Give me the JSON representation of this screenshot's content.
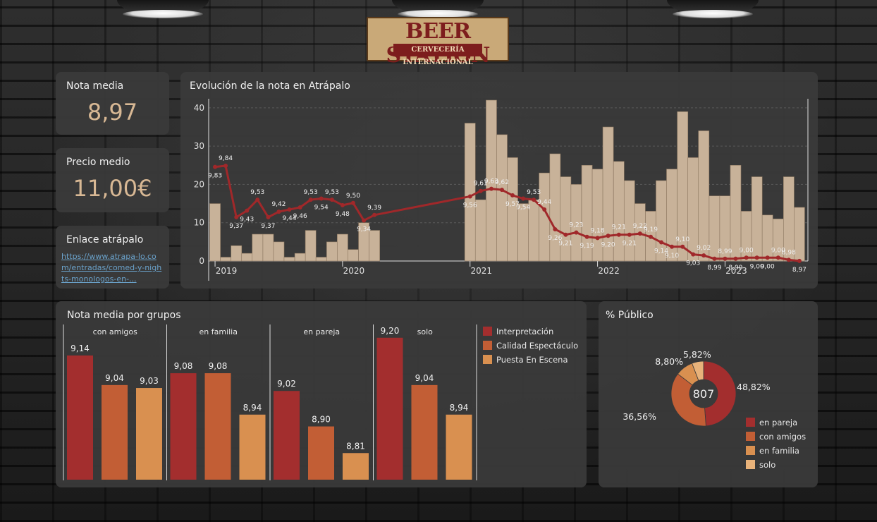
{
  "logo": {
    "main": "BEER STATION",
    "sub": "CERVECERÍA INTERNACIONAL"
  },
  "kpis": {
    "nota_media": {
      "label": "Nota media",
      "value": "8,97"
    },
    "precio_medio": {
      "label": "Precio medio",
      "value": "11,00€"
    },
    "enlace": {
      "label": "Enlace atrápalo",
      "url_text": "https://www.atrapa-lo.com/entradas/comed-y-nights-monologos-en-..."
    }
  },
  "colors": {
    "bar": "#c8b299",
    "line": "#a0282a",
    "interpretacion": "#a32e2e",
    "calidad": "#c25e35",
    "puesta": "#d99050",
    "solo": "#e8b27a"
  },
  "evolucion": {
    "title": "Evolución de la nota en Atrápalo",
    "chart_data": {
      "type": "bar+line",
      "yticks": [
        0,
        10,
        20,
        30,
        40
      ],
      "ylim": [
        0,
        42
      ],
      "xlim": [
        2018.95,
        2023.65
      ],
      "xticks": [
        2019,
        2020,
        2021,
        2022,
        2023
      ],
      "bars": [
        {
          "x": 2019.0,
          "v": 15
        },
        {
          "x": 2019.083,
          "v": 1
        },
        {
          "x": 2019.167,
          "v": 4
        },
        {
          "x": 2019.25,
          "v": 2
        },
        {
          "x": 2019.333,
          "v": 7
        },
        {
          "x": 2019.417,
          "v": 7
        },
        {
          "x": 2019.5,
          "v": 5
        },
        {
          "x": 2019.583,
          "v": 1
        },
        {
          "x": 2019.667,
          "v": 2
        },
        {
          "x": 2019.75,
          "v": 8
        },
        {
          "x": 2019.833,
          "v": 1
        },
        {
          "x": 2019.917,
          "v": 5
        },
        {
          "x": 2020.0,
          "v": 7
        },
        {
          "x": 2020.083,
          "v": 3
        },
        {
          "x": 2020.167,
          "v": 10
        },
        {
          "x": 2020.25,
          "v": 8
        },
        {
          "x": 2021.0,
          "v": 36
        },
        {
          "x": 2021.083,
          "v": 16
        },
        {
          "x": 2021.167,
          "v": 42
        },
        {
          "x": 2021.25,
          "v": 33
        },
        {
          "x": 2021.333,
          "v": 27
        },
        {
          "x": 2021.417,
          "v": 15
        },
        {
          "x": 2021.5,
          "v": 16
        },
        {
          "x": 2021.583,
          "v": 23
        },
        {
          "x": 2021.667,
          "v": 28
        },
        {
          "x": 2021.75,
          "v": 22
        },
        {
          "x": 2021.833,
          "v": 20
        },
        {
          "x": 2021.917,
          "v": 25
        },
        {
          "x": 2022.0,
          "v": 24
        },
        {
          "x": 2022.083,
          "v": 35
        },
        {
          "x": 2022.167,
          "v": 26
        },
        {
          "x": 2022.25,
          "v": 21
        },
        {
          "x": 2022.333,
          "v": 15
        },
        {
          "x": 2022.417,
          "v": 13
        },
        {
          "x": 2022.5,
          "v": 21
        },
        {
          "x": 2022.583,
          "v": 24
        },
        {
          "x": 2022.667,
          "v": 39
        },
        {
          "x": 2022.75,
          "v": 27
        },
        {
          "x": 2022.833,
          "v": 34
        },
        {
          "x": 2022.917,
          "v": 17
        },
        {
          "x": 2023.0,
          "v": 17
        },
        {
          "x": 2023.083,
          "v": 25
        },
        {
          "x": 2023.167,
          "v": 13
        },
        {
          "x": 2023.25,
          "v": 22
        },
        {
          "x": 2023.333,
          "v": 12
        },
        {
          "x": 2023.417,
          "v": 11
        },
        {
          "x": 2023.5,
          "v": 22
        },
        {
          "x": 2023.583,
          "v": 14
        }
      ],
      "line": [
        {
          "x": 2019.0,
          "y": 9.83,
          "label": "9,83",
          "pos": "below"
        },
        {
          "x": 2019.083,
          "y": 9.84,
          "label": "9,84",
          "pos": "above"
        },
        {
          "x": 2019.167,
          "y": 9.37,
          "label": "9,37",
          "pos": "below"
        },
        {
          "x": 2019.25,
          "y": 9.43,
          "label": "9,43",
          "pos": "below"
        },
        {
          "x": 2019.333,
          "y": 9.53,
          "label": "9,53",
          "pos": "above"
        },
        {
          "x": 2019.417,
          "y": 9.37,
          "label": "9,37",
          "pos": "below"
        },
        {
          "x": 2019.5,
          "y": 9.42,
          "label": "9,42",
          "pos": "above"
        },
        {
          "x": 2019.583,
          "y": 9.44,
          "label": "9,44",
          "pos": "below"
        },
        {
          "x": 2019.667,
          "y": 9.46,
          "label": "9,46",
          "pos": "below"
        },
        {
          "x": 2019.75,
          "y": 9.53,
          "label": "9,53",
          "pos": "above"
        },
        {
          "x": 2019.833,
          "y": 9.54,
          "label": "9,54",
          "pos": "below"
        },
        {
          "x": 2019.917,
          "y": 9.53,
          "label": "9,53",
          "pos": "above"
        },
        {
          "x": 2020.0,
          "y": 9.48,
          "label": "9,48",
          "pos": "below"
        },
        {
          "x": 2020.083,
          "y": 9.5,
          "label": "9,50",
          "pos": "above"
        },
        {
          "x": 2020.167,
          "y": 9.34,
          "label": "9,34",
          "pos": "below"
        },
        {
          "x": 2020.25,
          "y": 9.39,
          "label": "9,39",
          "pos": "above"
        },
        {
          "x": 2021.0,
          "y": 9.56,
          "label": "9,56",
          "pos": "below"
        },
        {
          "x": 2021.083,
          "y": 9.61,
          "label": "9,61",
          "pos": "above"
        },
        {
          "x": 2021.167,
          "y": 9.63,
          "label": "9,63",
          "pos": "above"
        },
        {
          "x": 2021.25,
          "y": 9.62,
          "label": "9,62",
          "pos": "above"
        },
        {
          "x": 2021.333,
          "y": 9.57,
          "label": "9,57",
          "pos": "below"
        },
        {
          "x": 2021.417,
          "y": 9.54,
          "label": "9,54",
          "pos": "below"
        },
        {
          "x": 2021.5,
          "y": 9.53,
          "label": "9,53",
          "pos": "above"
        },
        {
          "x": 2021.583,
          "y": 9.44,
          "label": "9,44",
          "pos": "above"
        },
        {
          "x": 2021.667,
          "y": 9.26,
          "label": "9,26",
          "pos": "below"
        },
        {
          "x": 2021.75,
          "y": 9.21,
          "label": "9,21",
          "pos": "below"
        },
        {
          "x": 2021.833,
          "y": 9.23,
          "label": "9,23",
          "pos": "above"
        },
        {
          "x": 2021.917,
          "y": 9.19,
          "label": "9,19",
          "pos": "below"
        },
        {
          "x": 2022.0,
          "y": 9.18,
          "label": "9,18",
          "pos": "above"
        },
        {
          "x": 2022.083,
          "y": 9.2,
          "label": "9,20",
          "pos": "below"
        },
        {
          "x": 2022.167,
          "y": 9.21,
          "label": "9,21",
          "pos": "above"
        },
        {
          "x": 2022.25,
          "y": 9.21,
          "label": "9,21",
          "pos": "below"
        },
        {
          "x": 2022.333,
          "y": 9.22,
          "label": "9,22",
          "pos": "above"
        },
        {
          "x": 2022.417,
          "y": 9.19,
          "label": "9,19",
          "pos": "above"
        },
        {
          "x": 2022.5,
          "y": 9.14,
          "label": "9,14",
          "pos": "below"
        },
        {
          "x": 2022.583,
          "y": 9.1,
          "label": "9,10",
          "pos": "below"
        },
        {
          "x": 2022.667,
          "y": 9.1,
          "label": "9,10",
          "pos": "above"
        },
        {
          "x": 2022.75,
          "y": 9.03,
          "label": "9,03",
          "pos": "below"
        },
        {
          "x": 2022.833,
          "y": 9.02,
          "label": "9,02",
          "pos": "above"
        },
        {
          "x": 2022.917,
          "y": 8.99,
          "label": "8,99",
          "pos": "below"
        },
        {
          "x": 2023.0,
          "y": 8.99,
          "label": "8,99",
          "pos": "above"
        },
        {
          "x": 2023.083,
          "y": 8.99,
          "label": "8,99",
          "pos": "below"
        },
        {
          "x": 2023.167,
          "y": 9.0,
          "label": "9,00",
          "pos": "above"
        },
        {
          "x": 2023.25,
          "y": 9.0,
          "label": "9,00",
          "pos": "below"
        },
        {
          "x": 2023.333,
          "y": 9.0,
          "label": "9,00",
          "pos": "below"
        },
        {
          "x": 2023.417,
          "y": 9.0,
          "label": "9,00",
          "pos": "above"
        },
        {
          "x": 2023.5,
          "y": 8.98,
          "label": "8,98",
          "pos": "above"
        },
        {
          "x": 2023.583,
          "y": 8.97,
          "label": "8,97",
          "pos": "below"
        }
      ]
    }
  },
  "grupos": {
    "title": "Nota media por grupos",
    "chart_data": {
      "type": "bar",
      "categories": [
        "con amigos",
        "en familia",
        "en pareja",
        "solo"
      ],
      "ylim": [
        8.72,
        9.24
      ],
      "series": [
        {
          "name": "Interpretación",
          "values": [
            9.14,
            9.08,
            9.02,
            9.2
          ],
          "labels": [
            "9,14",
            "9,08",
            "9,02",
            "9,20"
          ]
        },
        {
          "name": "Calidad Espectáculo",
          "values": [
            9.04,
            9.08,
            8.9,
            9.04
          ],
          "labels": [
            "9,04",
            "9,08",
            "8,90",
            "9,04"
          ]
        },
        {
          "name": "Puesta En Escena",
          "values": [
            9.03,
            8.94,
            8.81,
            8.94
          ],
          "labels": [
            "9,03",
            "8,94",
            "8,81",
            "8,94"
          ]
        }
      ]
    }
  },
  "publico": {
    "title": "% Público",
    "center": "807",
    "chart_data": {
      "type": "pie",
      "slices": [
        {
          "name": "en pareja",
          "value": 48.82,
          "label": "48,82%"
        },
        {
          "name": "con amigos",
          "value": 36.56,
          "label": "36,56%"
        },
        {
          "name": "en familia",
          "value": 8.8,
          "label": "8,80%"
        },
        {
          "name": "solo",
          "value": 5.82,
          "label": "5,82%"
        }
      ]
    }
  }
}
